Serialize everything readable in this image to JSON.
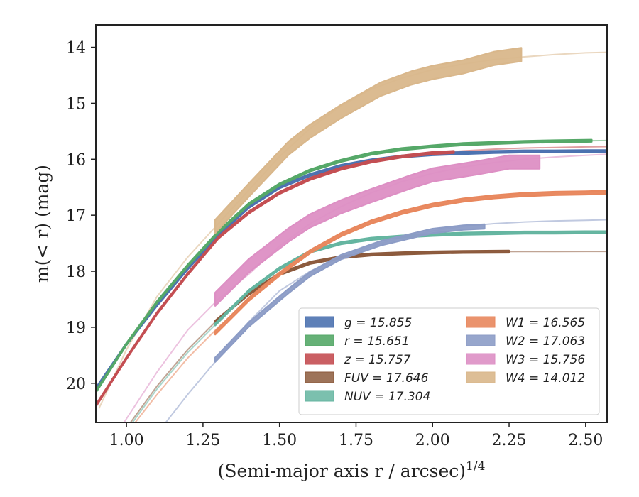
{
  "chart_data": {
    "type": "line",
    "title": "",
    "xlabel": "(Semi-major axis r / arcsec)",
    "xlabel_sup": "1/4",
    "ylabel": "m(< r) (mag)",
    "xlim": [
      0.9,
      2.57
    ],
    "ylim": [
      20.7,
      13.6
    ],
    "y_inverted": true,
    "grid": false,
    "legend_position": "lower-right",
    "xticks": [
      "1.00",
      "1.25",
      "1.50",
      "1.75",
      "2.00",
      "2.25",
      "2.50"
    ],
    "xtick_values": [
      1.0,
      1.25,
      1.5,
      1.75,
      2.0,
      2.25,
      2.5
    ],
    "yticks": [
      "14",
      "15",
      "16",
      "17",
      "18",
      "19",
      "20"
    ],
    "ytick_values": [
      14,
      15,
      16,
      17,
      18,
      19,
      20
    ],
    "series": [
      {
        "name": "g = 15.855",
        "color": "#4c72b0",
        "model_x": [
          0.9,
          1.0,
          1.1,
          1.2,
          1.3,
          1.4,
          1.5,
          1.6,
          1.7,
          1.8,
          1.9,
          2.0,
          2.1,
          2.2,
          2.3,
          2.4,
          2.5,
          2.57
        ],
        "model_y": [
          20.1,
          19.3,
          18.6,
          17.95,
          17.35,
          16.85,
          16.5,
          16.28,
          16.12,
          16.02,
          15.95,
          15.91,
          15.89,
          15.87,
          15.86,
          15.86,
          15.855,
          15.855
        ],
        "obs_x": [
          0.9,
          1.0,
          1.1,
          1.2,
          1.3,
          1.4,
          1.5,
          1.6,
          1.7,
          1.8,
          1.9,
          2.0,
          2.1,
          2.2,
          2.3,
          2.4,
          2.5,
          2.57
        ],
        "obs_y": [
          20.1,
          19.3,
          18.6,
          17.95,
          17.35,
          16.85,
          16.5,
          16.28,
          16.12,
          16.02,
          15.95,
          15.91,
          15.89,
          15.87,
          15.86,
          15.86,
          15.855,
          15.855
        ],
        "obs_err": 0.02
      },
      {
        "name": "r = 15.651",
        "color": "#55a868",
        "model_x": [
          0.9,
          1.0,
          1.1,
          1.2,
          1.3,
          1.4,
          1.5,
          1.6,
          1.7,
          1.8,
          1.9,
          2.0,
          2.1,
          2.2,
          2.3,
          2.4,
          2.5,
          2.57
        ],
        "model_y": [
          20.15,
          19.3,
          18.55,
          17.9,
          17.3,
          16.8,
          16.45,
          16.2,
          16.03,
          15.9,
          15.82,
          15.77,
          15.73,
          15.71,
          15.69,
          15.68,
          15.67,
          15.665
        ],
        "obs_x": [
          0.9,
          1.0,
          1.1,
          1.2,
          1.3,
          1.4,
          1.5,
          1.6,
          1.7,
          1.8,
          1.9,
          2.0,
          2.1,
          2.2,
          2.3,
          2.4,
          2.52
        ],
        "obs_y": [
          20.15,
          19.3,
          18.55,
          17.9,
          17.3,
          16.8,
          16.45,
          16.2,
          16.03,
          15.9,
          15.82,
          15.77,
          15.73,
          15.71,
          15.69,
          15.68,
          15.67
        ],
        "obs_err": 0.02
      },
      {
        "name": "z = 15.757",
        "color": "#c44e52",
        "model_x": [
          0.9,
          1.0,
          1.1,
          1.2,
          1.3,
          1.4,
          1.5,
          1.6,
          1.7,
          1.8,
          1.9,
          2.0,
          2.1,
          2.2,
          2.3,
          2.4,
          2.5,
          2.57
        ],
        "model_y": [
          20.4,
          19.55,
          18.75,
          18.05,
          17.4,
          16.95,
          16.6,
          16.35,
          16.17,
          16.04,
          15.95,
          15.89,
          15.85,
          15.82,
          15.8,
          15.79,
          15.78,
          15.775
        ],
        "obs_x": [
          0.9,
          1.0,
          1.1,
          1.2,
          1.3,
          1.4,
          1.5,
          1.6,
          1.7,
          1.8,
          1.9,
          2.0,
          2.07
        ],
        "obs_y": [
          20.4,
          19.55,
          18.75,
          18.05,
          17.4,
          16.95,
          16.6,
          16.35,
          16.17,
          16.04,
          15.95,
          15.89,
          15.87
        ],
        "obs_err": 0.02
      },
      {
        "name": "FUV = 17.646",
        "color": "#8c5a3c",
        "model_x": [
          1.0,
          1.1,
          1.2,
          1.3,
          1.4,
          1.5,
          1.6,
          1.7,
          1.8,
          1.9,
          2.0,
          2.1,
          2.2,
          2.3,
          2.4,
          2.5,
          2.57
        ],
        "model_y": [
          20.8,
          20.05,
          19.4,
          18.85,
          18.4,
          18.05,
          17.85,
          17.75,
          17.7,
          17.68,
          17.665,
          17.655,
          17.65,
          17.648,
          17.647,
          17.646,
          17.646
        ],
        "obs_x": [
          1.29,
          1.4,
          1.5,
          1.6,
          1.7,
          1.8,
          1.9,
          2.0,
          2.1,
          2.25
        ],
        "obs_y": [
          18.9,
          18.4,
          18.05,
          17.85,
          17.75,
          17.7,
          17.68,
          17.665,
          17.655,
          17.65
        ],
        "obs_err": 0.02
      },
      {
        "name": "NUV = 17.304",
        "color": "#64b5a0",
        "model_x": [
          1.0,
          1.1,
          1.2,
          1.3,
          1.4,
          1.5,
          1.6,
          1.7,
          1.8,
          1.9,
          2.0,
          2.1,
          2.2,
          2.3,
          2.4,
          2.5,
          2.57
        ],
        "model_y": [
          20.85,
          20.1,
          19.45,
          18.9,
          18.35,
          17.95,
          17.65,
          17.5,
          17.42,
          17.38,
          17.35,
          17.33,
          17.32,
          17.31,
          17.31,
          17.305,
          17.304
        ],
        "obs_x": [
          1.29,
          1.4,
          1.5,
          1.6,
          1.7,
          1.8,
          1.9,
          2.0,
          2.1,
          2.2,
          2.3,
          2.4,
          2.5,
          2.57
        ],
        "obs_y": [
          18.95,
          18.35,
          17.95,
          17.65,
          17.5,
          17.42,
          17.38,
          17.35,
          17.33,
          17.32,
          17.31,
          17.31,
          17.305,
          17.304
        ],
        "obs_err": 0.02
      },
      {
        "name": "W1 = 16.565",
        "color": "#e8875d",
        "model_x": [
          1.0,
          1.1,
          1.2,
          1.3,
          1.4,
          1.5,
          1.6,
          1.7,
          1.8,
          1.9,
          2.0,
          2.1,
          2.2,
          2.3,
          2.4,
          2.5,
          2.57
        ],
        "model_y": [
          20.9,
          20.2,
          19.55,
          19.0,
          18.5,
          18.05,
          17.65,
          17.35,
          17.12,
          16.95,
          16.82,
          16.73,
          16.67,
          16.63,
          16.61,
          16.6,
          16.59
        ],
        "obs_x": [
          1.29,
          1.4,
          1.5,
          1.6,
          1.7,
          1.8,
          1.9,
          2.0,
          2.1,
          2.2,
          2.3,
          2.4,
          2.5,
          2.57
        ],
        "obs_y": [
          19.1,
          18.5,
          18.05,
          17.65,
          17.35,
          17.12,
          16.95,
          16.82,
          16.73,
          16.67,
          16.63,
          16.61,
          16.6,
          16.59
        ],
        "obs_err": 0.03
      },
      {
        "name": "W2 = 17.063",
        "color": "#8c9cc6",
        "model_x": [
          1.1,
          1.2,
          1.3,
          1.4,
          1.5,
          1.6,
          1.7,
          1.8,
          1.9,
          2.0,
          2.1,
          2.2,
          2.3,
          2.4,
          2.5,
          2.57
        ],
        "model_y": [
          20.9,
          20.2,
          19.55,
          18.9,
          18.35,
          18.0,
          17.75,
          17.55,
          17.4,
          17.28,
          17.2,
          17.15,
          17.12,
          17.1,
          17.09,
          17.08
        ],
        "obs_x": [
          1.29,
          1.4,
          1.53,
          1.6,
          1.7,
          1.83,
          1.93,
          2.0,
          2.1,
          2.17
        ],
        "obs_y": [
          19.58,
          18.95,
          18.35,
          18.05,
          17.75,
          17.5,
          17.37,
          17.28,
          17.22,
          17.2
        ],
        "obs_err": 0.04
      },
      {
        "name": "W3 = 15.756",
        "color": "#dd8fc4",
        "model_x": [
          0.98,
          1.1,
          1.2,
          1.3,
          1.4,
          1.5,
          1.6,
          1.7,
          1.8,
          1.9,
          2.0,
          2.1,
          2.2,
          2.3,
          2.4,
          2.5,
          2.57
        ],
        "model_y": [
          20.8,
          19.8,
          19.05,
          18.5,
          18.05,
          17.55,
          17.15,
          16.85,
          16.6,
          16.4,
          16.25,
          16.14,
          16.06,
          16.0,
          15.96,
          15.93,
          15.91
        ],
        "obs_x": [
          1.29,
          1.4,
          1.53,
          1.6,
          1.7,
          1.8,
          1.93,
          2.0,
          2.15,
          2.25,
          2.35
        ],
        "obs_y": [
          18.5,
          17.9,
          17.35,
          17.1,
          16.85,
          16.65,
          16.4,
          16.28,
          16.15,
          16.05,
          16.05
        ],
        "obs_err": 0.12
      },
      {
        "name": "W4 = 14.012",
        "color": "#d9b78b",
        "model_x": [
          0.91,
          1.0,
          1.1,
          1.2,
          1.3,
          1.4,
          1.5,
          1.6,
          1.7,
          1.8,
          1.9,
          2.0,
          2.1,
          2.2,
          2.3,
          2.4,
          2.5,
          2.57
        ],
        "model_y": [
          20.45,
          19.4,
          18.45,
          17.75,
          17.15,
          16.55,
          15.95,
          15.45,
          15.05,
          14.75,
          14.55,
          14.4,
          14.3,
          14.22,
          14.17,
          14.13,
          14.1,
          14.09
        ],
        "obs_x": [
          1.29,
          1.4,
          1.53,
          1.6,
          1.7,
          1.83,
          1.93,
          2.0,
          2.1,
          2.2,
          2.29
        ],
        "obs_y": [
          17.2,
          16.55,
          15.8,
          15.5,
          15.15,
          14.75,
          14.55,
          14.45,
          14.35,
          14.2,
          14.13
        ],
        "obs_err": 0.12
      }
    ],
    "legend_columns": [
      [
        "g = 15.855",
        "r = 15.651",
        "z = 15.757",
        "FUV = 17.646",
        "NUV = 17.304"
      ],
      [
        "W1 = 16.565",
        "W2 = 17.063",
        "W3 = 15.756",
        "W4 = 14.012"
      ]
    ]
  }
}
